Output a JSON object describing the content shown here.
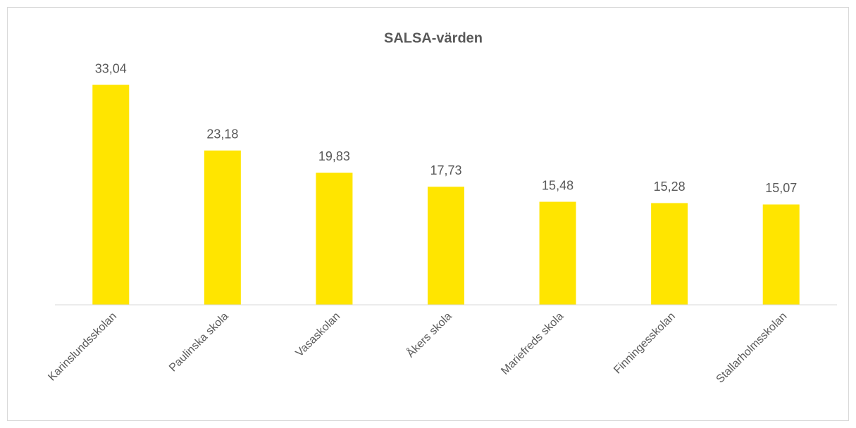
{
  "chart_data": {
    "type": "bar",
    "title": "SALSA-värden",
    "categories": [
      "Karinslundsskolan",
      "Paulinska skola",
      "Vasaskolan",
      "Åkers skola",
      "Mariefreds skola",
      "Finningesskolan",
      "Stallarholmsskolan"
    ],
    "values": [
      33.04,
      23.18,
      19.83,
      17.73,
      15.48,
      15.28,
      15.07
    ],
    "value_labels": [
      "33,04",
      "23,18",
      "19,83",
      "17,73",
      "15,48",
      "15,28",
      "15,07"
    ],
    "color": "#ffe500",
    "ylim": [
      0,
      35
    ]
  }
}
